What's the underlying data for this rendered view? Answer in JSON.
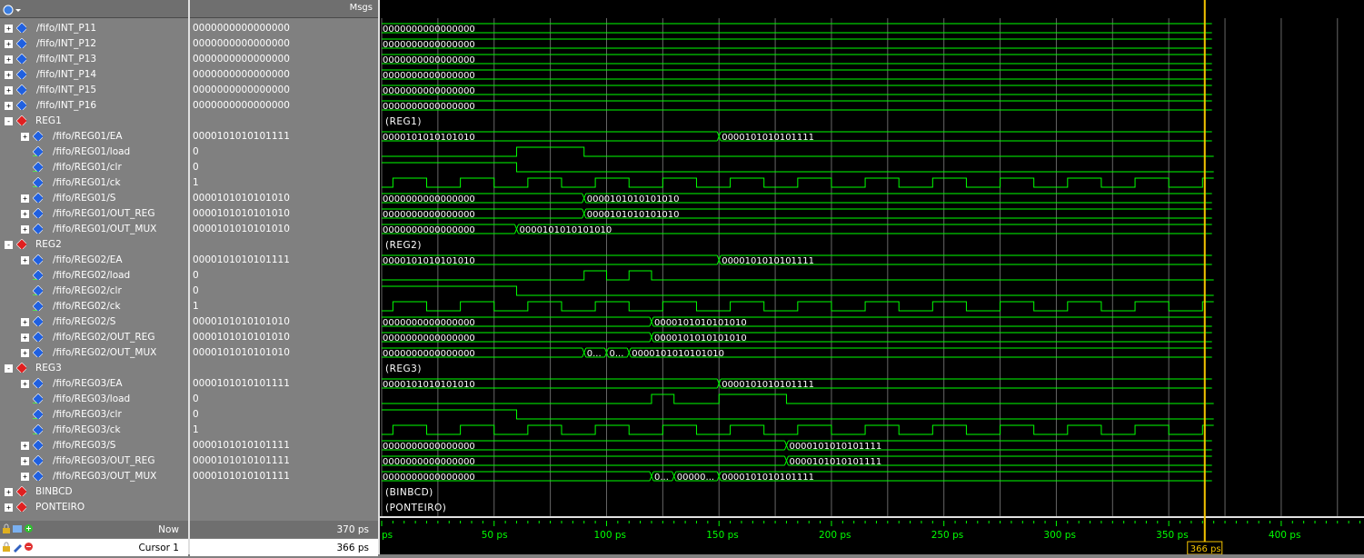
{
  "toolbar": {
    "msgs_label": "Msgs"
  },
  "signals": [
    {
      "name": "/fifo/INT_P11",
      "value": "0000000000000000",
      "level": 0,
      "type": "bus",
      "expander": "+"
    },
    {
      "name": "/fifo/INT_P12",
      "value": "0000000000000000",
      "level": 0,
      "type": "bus",
      "expander": "+"
    },
    {
      "name": "/fifo/INT_P13",
      "value": "0000000000000000",
      "level": 0,
      "type": "bus",
      "expander": "+"
    },
    {
      "name": "/fifo/INT_P14",
      "value": "0000000000000000",
      "level": 0,
      "type": "bus",
      "expander": "+"
    },
    {
      "name": "/fifo/INT_P15",
      "value": "0000000000000000",
      "level": 0,
      "type": "bus",
      "expander": "+"
    },
    {
      "name": "/fifo/INT_P16",
      "value": "0000000000000000",
      "level": 0,
      "type": "bus",
      "expander": "+"
    },
    {
      "name": "REG1",
      "value": "",
      "level": 0,
      "type": "group",
      "expander": "-"
    },
    {
      "name": "/fifo/REG01/EA",
      "value": "0000101010101111",
      "level": 1,
      "type": "bus",
      "expander": "+"
    },
    {
      "name": "/fifo/REG01/load",
      "value": "0",
      "level": 1,
      "type": "bit",
      "expander": ""
    },
    {
      "name": "/fifo/REG01/clr",
      "value": "0",
      "level": 1,
      "type": "bit",
      "expander": ""
    },
    {
      "name": "/fifo/REG01/ck",
      "value": "1",
      "level": 1,
      "type": "bit",
      "expander": ""
    },
    {
      "name": "/fifo/REG01/S",
      "value": "0000101010101010",
      "level": 1,
      "type": "bus",
      "expander": "+"
    },
    {
      "name": "/fifo/REG01/OUT_REG",
      "value": "0000101010101010",
      "level": 1,
      "type": "bus",
      "expander": "+"
    },
    {
      "name": "/fifo/REG01/OUT_MUX",
      "value": "0000101010101010",
      "level": 1,
      "type": "bus",
      "expander": "+"
    },
    {
      "name": "REG2",
      "value": "",
      "level": 0,
      "type": "group",
      "expander": "-"
    },
    {
      "name": "/fifo/REG02/EA",
      "value": "0000101010101111",
      "level": 1,
      "type": "bus",
      "expander": "+"
    },
    {
      "name": "/fifo/REG02/load",
      "value": "0",
      "level": 1,
      "type": "bit",
      "expander": ""
    },
    {
      "name": "/fifo/REG02/clr",
      "value": "0",
      "level": 1,
      "type": "bit",
      "expander": ""
    },
    {
      "name": "/fifo/REG02/ck",
      "value": "1",
      "level": 1,
      "type": "bit",
      "expander": ""
    },
    {
      "name": "/fifo/REG02/S",
      "value": "0000101010101010",
      "level": 1,
      "type": "bus",
      "expander": "+"
    },
    {
      "name": "/fifo/REG02/OUT_REG",
      "value": "0000101010101010",
      "level": 1,
      "type": "bus",
      "expander": "+"
    },
    {
      "name": "/fifo/REG02/OUT_MUX",
      "value": "0000101010101010",
      "level": 1,
      "type": "bus",
      "expander": "+"
    },
    {
      "name": "REG3",
      "value": "",
      "level": 0,
      "type": "group",
      "expander": "-"
    },
    {
      "name": "/fifo/REG03/EA",
      "value": "0000101010101111",
      "level": 1,
      "type": "bus",
      "expander": "+"
    },
    {
      "name": "/fifo/REG03/load",
      "value": "0",
      "level": 1,
      "type": "bit",
      "expander": ""
    },
    {
      "name": "/fifo/REG03/clr",
      "value": "0",
      "level": 1,
      "type": "bit",
      "expander": ""
    },
    {
      "name": "/fifo/REG03/ck",
      "value": "1",
      "level": 1,
      "type": "bit",
      "expander": ""
    },
    {
      "name": "/fifo/REG03/S",
      "value": "0000101010101111",
      "level": 1,
      "type": "bus",
      "expander": "+"
    },
    {
      "name": "/fifo/REG03/OUT_REG",
      "value": "0000101010101111",
      "level": 1,
      "type": "bus",
      "expander": "+"
    },
    {
      "name": "/fifo/REG03/OUT_MUX",
      "value": "0000101010101111",
      "level": 1,
      "type": "bus",
      "expander": "+"
    },
    {
      "name": "BINBCD",
      "value": "",
      "level": 0,
      "type": "group",
      "expander": "+"
    },
    {
      "name": "PONTEIRO",
      "value": "",
      "level": 0,
      "type": "group",
      "expander": "+"
    }
  ],
  "waves": [
    {
      "kind": "bus",
      "segs": [
        {
          "t": 0,
          "label": "0000000000000000"
        }
      ]
    },
    {
      "kind": "bus",
      "segs": [
        {
          "t": 0,
          "label": "0000000000000000"
        }
      ]
    },
    {
      "kind": "bus",
      "segs": [
        {
          "t": 0,
          "label": "0000000000000000"
        }
      ]
    },
    {
      "kind": "bus",
      "segs": [
        {
          "t": 0,
          "label": "0000000000000000"
        }
      ]
    },
    {
      "kind": "bus",
      "segs": [
        {
          "t": 0,
          "label": "0000000000000000"
        }
      ]
    },
    {
      "kind": "bus",
      "segs": [
        {
          "t": 0,
          "label": "0000000000000000"
        }
      ]
    },
    {
      "kind": "group",
      "label": "(REG1)"
    },
    {
      "kind": "bus",
      "segs": [
        {
          "t": 0,
          "label": "0000101010101010"
        },
        {
          "t": 150,
          "label": "0000101010101111"
        }
      ]
    },
    {
      "kind": "bit",
      "initial": 0,
      "edges": [
        60,
        90
      ]
    },
    {
      "kind": "bit",
      "initial": 1,
      "edges": [
        60
      ]
    },
    {
      "kind": "clock",
      "period": 30,
      "start": 5
    },
    {
      "kind": "bus",
      "segs": [
        {
          "t": 0,
          "label": "0000000000000000"
        },
        {
          "t": 90,
          "label": "0000101010101010"
        }
      ]
    },
    {
      "kind": "bus",
      "segs": [
        {
          "t": 0,
          "label": "0000000000000000"
        },
        {
          "t": 90,
          "label": "0000101010101010"
        }
      ]
    },
    {
      "kind": "bus",
      "segs": [
        {
          "t": 0,
          "label": "0000000000000000"
        },
        {
          "t": 60,
          "label": "0000101010101010"
        }
      ]
    },
    {
      "kind": "group",
      "label": "(REG2)"
    },
    {
      "kind": "bus",
      "segs": [
        {
          "t": 0,
          "label": "0000101010101010"
        },
        {
          "t": 150,
          "label": "0000101010101111"
        }
      ]
    },
    {
      "kind": "bit",
      "initial": 0,
      "edges": [
        90,
        100,
        110,
        120
      ]
    },
    {
      "kind": "bit",
      "initial": 1,
      "edges": [
        60
      ]
    },
    {
      "kind": "clock",
      "period": 30,
      "start": 5
    },
    {
      "kind": "bus",
      "segs": [
        {
          "t": 0,
          "label": "0000000000000000"
        },
        {
          "t": 120,
          "label": "0000101010101010"
        }
      ]
    },
    {
      "kind": "bus",
      "segs": [
        {
          "t": 0,
          "label": "0000000000000000"
        },
        {
          "t": 120,
          "label": "0000101010101010"
        }
      ]
    },
    {
      "kind": "bus",
      "segs": [
        {
          "t": 0,
          "label": "0000000000000000"
        },
        {
          "t": 90,
          "label": "0..."
        },
        {
          "t": 100,
          "label": "0..."
        },
        {
          "t": 110,
          "label": "0000101010101010"
        }
      ]
    },
    {
      "kind": "group",
      "label": "(REG3)"
    },
    {
      "kind": "bus",
      "segs": [
        {
          "t": 0,
          "label": "0000101010101010"
        },
        {
          "t": 150,
          "label": "0000101010101111"
        }
      ]
    },
    {
      "kind": "bit",
      "initial": 0,
      "edges": [
        120,
        130,
        150,
        180
      ]
    },
    {
      "kind": "bit",
      "initial": 1,
      "edges": [
        60
      ]
    },
    {
      "kind": "clock",
      "period": 30,
      "start": 5
    },
    {
      "kind": "bus",
      "segs": [
        {
          "t": 0,
          "label": "0000000000000000"
        },
        {
          "t": 180,
          "label": "0000101010101111"
        }
      ]
    },
    {
      "kind": "bus",
      "segs": [
        {
          "t": 0,
          "label": "0000000000000000"
        },
        {
          "t": 180,
          "label": "0000101010101111"
        }
      ]
    },
    {
      "kind": "bus",
      "segs": [
        {
          "t": 0,
          "label": "0000000000000000"
        },
        {
          "t": 120,
          "label": "0..."
        },
        {
          "t": 130,
          "label": "00000..."
        },
        {
          "t": 150,
          "label": "0000101010101111"
        }
      ]
    },
    {
      "kind": "group",
      "label": "(BINBCD)"
    },
    {
      "kind": "group",
      "label": "(PONTEIRO)"
    }
  ],
  "timeline": {
    "start_ps": 0,
    "end_ps": 436,
    "sim_end_ps": 370,
    "major_ticks": [
      {
        "t": 0,
        "label": "ps"
      },
      {
        "t": 50,
        "label": "50 ps"
      },
      {
        "t": 100,
        "label": "100 ps"
      },
      {
        "t": 150,
        "label": "150 ps"
      },
      {
        "t": 200,
        "label": "200 ps"
      },
      {
        "t": 250,
        "label": "250 ps"
      },
      {
        "t": 300,
        "label": "300 ps"
      },
      {
        "t": 350,
        "label": "350 ps"
      },
      {
        "t": 400,
        "label": "400 ps"
      }
    ]
  },
  "cursor": {
    "label": "Cursor 1",
    "value": "366 ps",
    "time_ps": 366,
    "time_label": "366 ps"
  },
  "now": {
    "label": "Now",
    "value": "370 ps"
  },
  "colors": {
    "wave": "#00ff00",
    "grid": "#666666",
    "cursor": "#f5c400",
    "group_icon": "#e02020",
    "signal_icon": "#2060e0",
    "background": "#000000"
  }
}
